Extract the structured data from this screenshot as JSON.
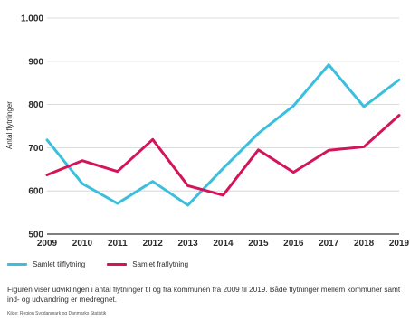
{
  "chart_data": {
    "type": "line",
    "title": "",
    "xlabel": "",
    "ylabel": "Antal flytninger",
    "x": [
      2009,
      2010,
      2011,
      2012,
      2013,
      2014,
      2015,
      2016,
      2017,
      2018,
      2019
    ],
    "ylim": [
      500,
      1000
    ],
    "yticks": [
      500,
      600,
      700,
      800,
      900,
      1000
    ],
    "ytick_labels": [
      "500",
      "600",
      "700",
      "800",
      "900",
      "1.000"
    ],
    "grid": "horizontal",
    "legend_position": "bottom-left",
    "series": [
      {
        "name": "Samlet tilflytning",
        "color": "#3bbfdd",
        "values": [
          718,
          617,
          571,
          622,
          567,
          652,
          733,
          797,
          892,
          795,
          857
        ]
      },
      {
        "name": "Samlet fraflytning",
        "color": "#d4145a",
        "values": [
          637,
          670,
          645,
          719,
          612,
          590,
          695,
          643,
          694,
          702,
          775
        ]
      }
    ]
  },
  "caption": "Figuren viser udviklingen i antal flytninger til og fra kommunen fra 2009 til 2019. Både flytninger mellem kommuner samt ind- og udvandring er medregnet.",
  "source": "Kilde: Region Syddanmark og Danmarks Statistik"
}
